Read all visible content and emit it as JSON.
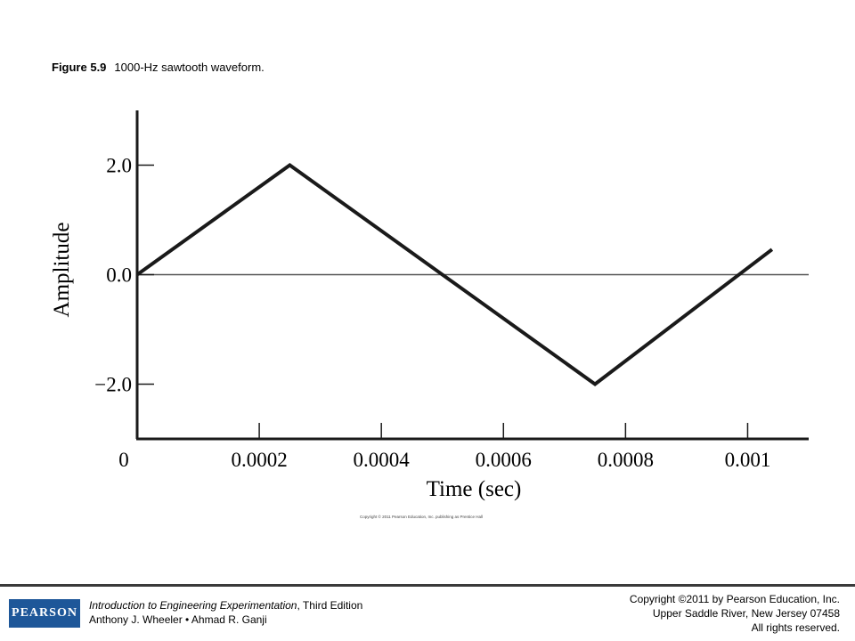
{
  "figure": {
    "label": "Figure 5.9",
    "title": "1000-Hz sawtooth waveform."
  },
  "chart_data": {
    "type": "line",
    "xlabel": "Time (sec)",
    "ylabel": "Amplitude",
    "xlim": [
      0,
      0.0011
    ],
    "ylim": [
      -3.0,
      3.0
    ],
    "x_ticks": [
      {
        "value": 0,
        "label": "0"
      },
      {
        "value": 0.0002,
        "label": "0.0002"
      },
      {
        "value": 0.0004,
        "label": "0.0004"
      },
      {
        "value": 0.0006,
        "label": "0.0006"
      },
      {
        "value": 0.0008,
        "label": "0.0008"
      },
      {
        "value": 0.001,
        "label": "0.001"
      }
    ],
    "y_ticks": [
      {
        "value": 2.0,
        "label": "2.0"
      },
      {
        "value": 0.0,
        "label": "0.0"
      },
      {
        "value": -2.0,
        "label": "−2.0"
      }
    ],
    "zero_line": true,
    "grid": false,
    "series": [
      {
        "x": [
          0,
          0.00025,
          0.00075,
          0.00104
        ],
        "y": [
          0.0,
          2.0,
          -2.0,
          0.46
        ]
      }
    ],
    "colors": {
      "line": "#1a1a1a",
      "axis": "#1a1a1a",
      "zero_line": "#555555"
    }
  },
  "credit": "Copyright © 2011 Pearson Education, Inc. publishing as Prentice Hall",
  "footer": {
    "logo_text": "PEARSON",
    "book_title": "Introduction to Engineering Experimentation",
    "book_edition": ", Third Edition",
    "authors": "Anthony J. Wheeler • Ahmad R. Ganji",
    "copyright_line1": "Copyright ©2011 by Pearson Education, Inc.",
    "copyright_line2": "Upper Saddle River, New Jersey 07458",
    "copyright_line3": "All rights reserved."
  }
}
